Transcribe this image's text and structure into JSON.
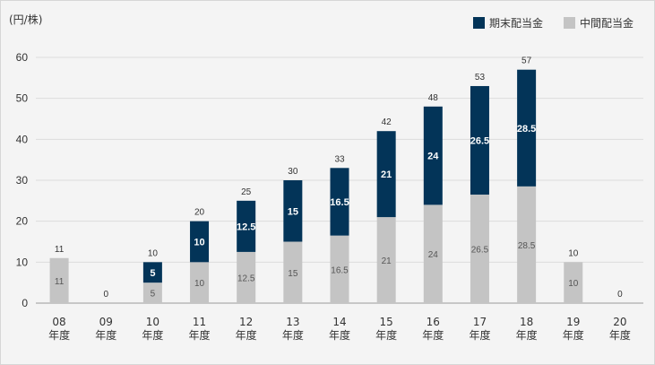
{
  "chart_data": {
    "type": "bar",
    "stacked": true,
    "unit_label": "(円/株)",
    "categories": [
      "08",
      "09",
      "10",
      "11",
      "12",
      "13",
      "14",
      "15",
      "16",
      "17",
      "18",
      "19",
      "20"
    ],
    "category_suffix": "年度",
    "series": [
      {
        "name": "中間配当金",
        "color": "#c4c4c4",
        "values": [
          11,
          0,
          5,
          10,
          12.5,
          15,
          16.5,
          21,
          24,
          26.5,
          28.5,
          10,
          0
        ]
      },
      {
        "name": "期末配当金",
        "color": "#033458",
        "values": [
          0,
          0,
          5,
          10,
          12.5,
          15,
          16.5,
          21,
          24,
          26.5,
          28.5,
          0,
          0
        ]
      }
    ],
    "totals": [
      11,
      0,
      10,
      20,
      25,
      30,
      33,
      42,
      48,
      53,
      57,
      10,
      0
    ],
    "ylim": [
      0,
      60
    ],
    "yticks": [
      0,
      10,
      20,
      30,
      40,
      50,
      60
    ],
    "grid": true,
    "legend_position": "top-right"
  }
}
